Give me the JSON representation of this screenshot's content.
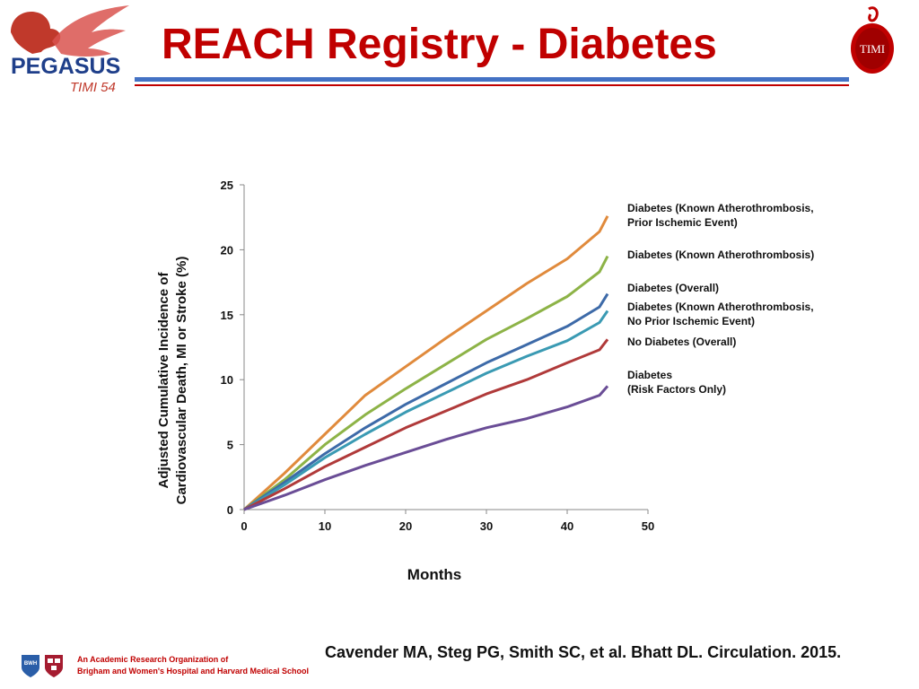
{
  "header": {
    "title": "REACH Registry - Diabetes",
    "logo_left_name": "PEGASUS",
    "logo_left_sub": "TIMI 54",
    "logo_right_text": "TIMI"
  },
  "footer": {
    "org_line1": "An Academic Research Organization of",
    "org_line2": "Brigham and Women's Hospital and Harvard Medical School",
    "citation": "Cavender MA, Steg PG, Smith SC, et al. Bhatt DL. Circulation. 2015.",
    "bwh_text": "BWH"
  },
  "colors": {
    "title": "#c00000",
    "brand_blue": "#1f3f8a",
    "rule_blue": "#4472c4"
  },
  "chart_data": {
    "type": "line",
    "xlabel": "Months",
    "ylabel_line1": "Adjusted Cumulative Incidence of",
    "ylabel_line2": "Cardiovascular Death, MI or Stroke (%)",
    "xlim": [
      0,
      50
    ],
    "ylim": [
      0,
      25
    ],
    "xticks": [
      "0",
      "10",
      "20",
      "30",
      "40",
      "50"
    ],
    "yticks": [
      "0",
      "5",
      "10",
      "15",
      "20",
      "25"
    ],
    "x": [
      0,
      5,
      10,
      15,
      20,
      25,
      30,
      35,
      40,
      44,
      45
    ],
    "series": [
      {
        "label_lines": [
          "Diabetes (Known Atherothrombosis,",
          "Prior Ischemic Event)"
        ],
        "color": "#e08a3c",
        "values": [
          0,
          2.8,
          5.8,
          8.8,
          11.0,
          13.2,
          15.3,
          17.4,
          19.3,
          21.4,
          22.6
        ]
      },
      {
        "label_lines": [
          "Diabetes (Known Atherothrombosis)"
        ],
        "color": "#8db347",
        "values": [
          0,
          2.3,
          5.0,
          7.3,
          9.3,
          11.2,
          13.1,
          14.7,
          16.4,
          18.3,
          19.5
        ]
      },
      {
        "label_lines": [
          "Diabetes (Overall)"
        ],
        "color": "#3d6aa8",
        "values": [
          0,
          2.1,
          4.3,
          6.3,
          8.1,
          9.7,
          11.3,
          12.7,
          14.1,
          15.6,
          16.6
        ]
      },
      {
        "label_lines": [
          "Diabetes (Known Atherothrombosis,",
          "No Prior Ischemic Event)"
        ],
        "color": "#3a9ab3",
        "values": [
          0,
          1.9,
          4.0,
          5.8,
          7.5,
          9.0,
          10.5,
          11.8,
          13.0,
          14.4,
          15.3
        ]
      },
      {
        "label_lines": [
          "No Diabetes (Overall)"
        ],
        "color": "#b03a3a",
        "values": [
          0,
          1.6,
          3.3,
          4.8,
          6.3,
          7.6,
          8.9,
          10.0,
          11.3,
          12.3,
          13.1
        ]
      },
      {
        "label_lines": [
          "Diabetes",
          "(Risk Factors Only)"
        ],
        "color": "#6a4d96",
        "values": [
          0,
          1.1,
          2.3,
          3.4,
          4.4,
          5.4,
          6.3,
          7.0,
          7.9,
          8.8,
          9.5
        ]
      }
    ]
  }
}
